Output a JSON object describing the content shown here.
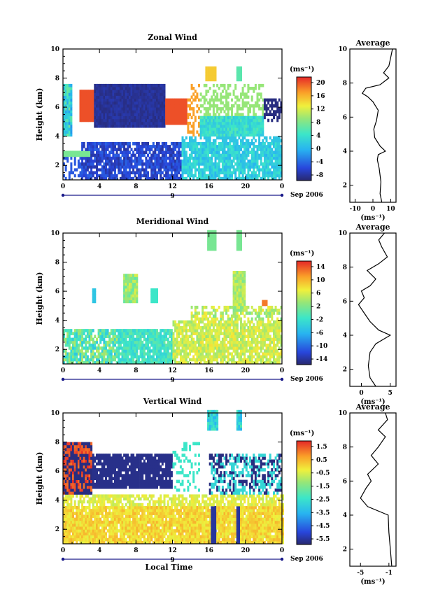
{
  "chart_data": [
    {
      "type": "heatmap",
      "title": "Zonal Wind",
      "ylabel": "Height (km)",
      "ylim": [
        1,
        10
      ],
      "y_ticks": [
        "2",
        "4",
        "6",
        "8",
        "10"
      ],
      "x_ticks": [
        "0",
        "4",
        "8",
        "12",
        "16",
        "20",
        "0"
      ],
      "xlim": [
        0,
        24
      ],
      "date_mark": "9",
      "date_label": "Sep 2006",
      "colorbar": {
        "unit": "(ms⁻¹)",
        "ticks": [
          "20",
          "16",
          "12",
          "8",
          "4",
          "0",
          "-4",
          "-8"
        ],
        "range": [
          -10,
          22
        ]
      },
      "profile": {
        "title": "Average",
        "xlabel": "(ms⁻¹)",
        "x_ticks": [
          "-10",
          "0",
          "10"
        ],
        "y_ticks": [
          "2",
          "4",
          "6",
          "8",
          "10"
        ],
        "xlim": [
          -13,
          13
        ],
        "points": [
          [
            5,
            1.0
          ],
          [
            4,
            1.5
          ],
          [
            4.5,
            2.2
          ],
          [
            3.5,
            3.0
          ],
          [
            2.5,
            3.5
          ],
          [
            3,
            3.8
          ],
          [
            7,
            4.0
          ],
          [
            4,
            4.3
          ],
          [
            1,
            4.8
          ],
          [
            0.5,
            5.3
          ],
          [
            2,
            5.8
          ],
          [
            3,
            6.4
          ],
          [
            0,
            6.9
          ],
          [
            -3,
            7.2
          ],
          [
            -6,
            7.4
          ],
          [
            -4,
            7.7
          ],
          [
            4,
            7.9
          ],
          [
            9,
            8.3
          ],
          [
            6,
            8.6
          ],
          [
            9,
            9.0
          ],
          [
            10,
            9.5
          ],
          [
            11,
            10.0
          ]
        ]
      }
    },
    {
      "type": "heatmap",
      "title": "Meridional Wind",
      "ylabel": "Height (km)",
      "ylim": [
        1,
        10
      ],
      "y_ticks": [
        "2",
        "4",
        "6",
        "8",
        "10"
      ],
      "x_ticks": [
        "0",
        "4",
        "8",
        "12",
        "16",
        "20",
        "0"
      ],
      "xlim": [
        0,
        24
      ],
      "date_mark": "9",
      "date_label": "Sep 2006",
      "colorbar": {
        "unit": "(ms⁻¹)",
        "ticks": [
          "14",
          "10",
          "6",
          "2",
          "-2",
          "-6",
          "-10",
          "-14"
        ],
        "range": [
          -16,
          16
        ]
      },
      "profile": {
        "title": "Average",
        "xlabel": "(ms⁻¹)",
        "x_ticks": [
          "0",
          "5"
        ],
        "y_ticks": [
          "2",
          "4",
          "6",
          "8",
          "10"
        ],
        "xlim": [
          -2,
          6
        ],
        "points": [
          [
            2.5,
            1.0
          ],
          [
            1.5,
            1.5
          ],
          [
            1.2,
            2.2
          ],
          [
            1.5,
            3.0
          ],
          [
            2.5,
            3.5
          ],
          [
            4,
            3.8
          ],
          [
            5,
            4.0
          ],
          [
            3,
            4.3
          ],
          [
            1.5,
            4.8
          ],
          [
            0.5,
            5.3
          ],
          [
            -0.5,
            5.8
          ],
          [
            0.5,
            6.2
          ],
          [
            0,
            6.6
          ],
          [
            1.5,
            6.9
          ],
          [
            2.5,
            7.3
          ],
          [
            1,
            7.8
          ],
          [
            3,
            8.2
          ],
          [
            4.5,
            8.6
          ],
          [
            3.5,
            9.2
          ],
          [
            3,
            9.6
          ],
          [
            4,
            10.0
          ]
        ]
      }
    },
    {
      "type": "heatmap",
      "title": "Vertical Wind",
      "ylabel": "Height (km)",
      "ylim": [
        1,
        10
      ],
      "y_ticks": [
        "2",
        "4",
        "6",
        "8",
        "10"
      ],
      "x_ticks": [
        "0",
        "4",
        "8",
        "12",
        "16",
        "20",
        "0"
      ],
      "xlim": [
        0,
        24
      ],
      "date_mark": "9",
      "date_label": "Sep 2006",
      "xlabel": "Local Time",
      "colorbar": {
        "unit": "(ms⁻¹)",
        "ticks": [
          "1.5",
          "0.5",
          "-0.5",
          "-1.5",
          "-2.5",
          "-3.5",
          "-4.5",
          "-5.5"
        ],
        "range": [
          -6.5,
          2
        ]
      },
      "profile": {
        "title": "Average",
        "xlabel": "(ms⁻¹)",
        "x_ticks": [
          "-5",
          "-1"
        ],
        "y_ticks": [
          "2",
          "4",
          "6",
          "8",
          "10"
        ],
        "xlim": [
          -6.5,
          0
        ],
        "points": [
          [
            -0.6,
            1.0
          ],
          [
            -0.8,
            2.0
          ],
          [
            -1.0,
            3.0
          ],
          [
            -1.1,
            4.0
          ],
          [
            -4,
            4.5
          ],
          [
            -5,
            5.0
          ],
          [
            -4.2,
            5.6
          ],
          [
            -3.5,
            6.0
          ],
          [
            -4,
            6.4
          ],
          [
            -2.5,
            7.0
          ],
          [
            -3.5,
            7.5
          ],
          [
            -2.5,
            8.0
          ],
          [
            -1.5,
            8.6
          ],
          [
            -2.5,
            9.0
          ],
          [
            -1.2,
            9.6
          ],
          [
            -1.5,
            10.0
          ]
        ]
      }
    }
  ]
}
